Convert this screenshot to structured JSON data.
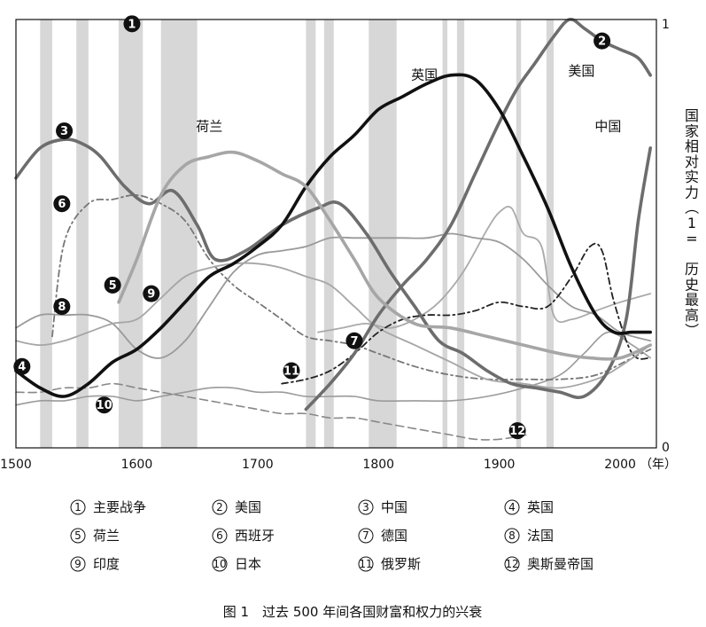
{
  "chart_data": {
    "type": "line",
    "title": "",
    "xlabel": "（年）",
    "ylabel": "国家相对实力（1= 历史最高）",
    "xlim": [
      1500,
      2030
    ],
    "ylim": [
      0,
      1
    ],
    "x_ticks": [
      "1500",
      "1600",
      "1700",
      "1800",
      "1900",
      "2000"
    ],
    "y_ticks": [
      "0",
      "1"
    ],
    "war_periods": [
      [
        1520,
        1530
      ],
      [
        1550,
        1560
      ],
      [
        1585,
        1605
      ],
      [
        1620,
        1650
      ],
      [
        1740,
        1748
      ],
      [
        1755,
        1763
      ],
      [
        1792,
        1815
      ],
      [
        1853,
        1857
      ],
      [
        1865,
        1871
      ],
      [
        1914,
        1918
      ],
      [
        1939,
        1945
      ]
    ],
    "series": [
      {
        "id": 1,
        "name": "主要战争",
        "markers": [
          {
            "x": 1596,
            "y": 0.99
          }
        ]
      },
      {
        "id": 2,
        "name": "美国",
        "color": "#6d6d6d",
        "width": 3.6,
        "dash": "",
        "label": "美国",
        "label_pos": [
          1968,
          0.87
        ],
        "markers": [
          {
            "x": 1985,
            "y": 0.95
          }
        ],
        "x": [
          1740,
          1760,
          1780,
          1800,
          1820,
          1840,
          1860,
          1880,
          1900,
          1915,
          1930,
          1945,
          1958,
          1970,
          1985,
          2000,
          2015,
          2025
        ],
        "y": [
          0.09,
          0.15,
          0.22,
          0.31,
          0.38,
          0.44,
          0.52,
          0.64,
          0.76,
          0.84,
          0.9,
          0.96,
          1.0,
          0.98,
          0.95,
          0.93,
          0.91,
          0.87
        ]
      },
      {
        "id": 3,
        "name": "中国",
        "color": "#6d6d6d",
        "width": 3.6,
        "dash": "",
        "label": "中国",
        "label_pos": [
          1990,
          0.74
        ],
        "markers": [
          {
            "x": 1540,
            "y": 0.74
          }
        ],
        "x": [
          1500,
          1520,
          1540,
          1555,
          1570,
          1590,
          1610,
          1630,
          1650,
          1665,
          1690,
          1720,
          1750,
          1768,
          1790,
          1810,
          1830,
          1850,
          1870,
          1890,
          1910,
          1930,
          1950,
          1970,
          1990,
          2005,
          2015,
          2025
        ],
        "y": [
          0.63,
          0.7,
          0.72,
          0.71,
          0.68,
          0.61,
          0.57,
          0.6,
          0.52,
          0.44,
          0.46,
          0.52,
          0.56,
          0.57,
          0.5,
          0.41,
          0.33,
          0.25,
          0.22,
          0.18,
          0.15,
          0.14,
          0.13,
          0.12,
          0.18,
          0.3,
          0.53,
          0.7
        ]
      },
      {
        "id": 4,
        "name": "英国",
        "color": "#111111",
        "width": 3.6,
        "dash": "",
        "label": "英国",
        "label_pos": [
          1838,
          0.86
        ],
        "markers": [
          {
            "x": 1505,
            "y": 0.19
          }
        ],
        "x": [
          1500,
          1520,
          1540,
          1560,
          1580,
          1600,
          1620,
          1640,
          1660,
          1680,
          1700,
          1720,
          1740,
          1760,
          1780,
          1800,
          1820,
          1840,
          1860,
          1880,
          1900,
          1920,
          1940,
          1960,
          1980,
          1995,
          2010,
          2025
        ],
        "y": [
          0.18,
          0.14,
          0.12,
          0.15,
          0.2,
          0.23,
          0.28,
          0.34,
          0.4,
          0.43,
          0.47,
          0.52,
          0.61,
          0.68,
          0.73,
          0.79,
          0.82,
          0.85,
          0.87,
          0.86,
          0.79,
          0.68,
          0.56,
          0.42,
          0.31,
          0.27,
          0.27,
          0.27
        ]
      },
      {
        "id": 5,
        "name": "荷兰",
        "color": "#a6a6a6",
        "width": 3.6,
        "dash": "",
        "label": "荷兰",
        "label_pos": [
          1660,
          0.74
        ],
        "markers": [
          {
            "x": 1580,
            "y": 0.38
          }
        ],
        "x": [
          1585,
          1600,
          1620,
          1640,
          1660,
          1680,
          1700,
          1720,
          1740,
          1760,
          1780,
          1800,
          1830,
          1860,
          1890,
          1920,
          1950,
          1975,
          2000,
          2025
        ],
        "y": [
          0.34,
          0.44,
          0.59,
          0.66,
          0.68,
          0.69,
          0.67,
          0.64,
          0.61,
          0.53,
          0.44,
          0.35,
          0.29,
          0.28,
          0.26,
          0.24,
          0.22,
          0.21,
          0.21,
          0.24
        ]
      },
      {
        "id": 6,
        "name": "西班牙",
        "color": "#777777",
        "width": 1.8,
        "dash": "7,4,2,4",
        "markers": [
          {
            "x": 1538,
            "y": 0.57
          }
        ],
        "x": [
          1530,
          1540,
          1560,
          1580,
          1600,
          1620,
          1640,
          1660,
          1680,
          1700,
          1720,
          1740,
          1760,
          1780,
          1800,
          1830,
          1860,
          1890,
          1920,
          1950,
          1980,
          2010,
          2025
        ],
        "y": [
          0.26,
          0.48,
          0.57,
          0.58,
          0.59,
          0.57,
          0.53,
          0.44,
          0.38,
          0.34,
          0.3,
          0.26,
          0.25,
          0.24,
          0.22,
          0.19,
          0.17,
          0.16,
          0.16,
          0.16,
          0.17,
          0.21,
          0.23
        ]
      },
      {
        "id": 7,
        "name": "德国",
        "color": "#aaaaaa",
        "width": 1.8,
        "dash": "",
        "markers": [
          {
            "x": 1780,
            "y": 0.25
          }
        ],
        "x": [
          1750,
          1770,
          1790,
          1810,
          1830,
          1850,
          1870,
          1890,
          1900,
          1910,
          1920,
          1935,
          1945,
          1960,
          1980,
          2000,
          2025
        ],
        "y": [
          0.27,
          0.28,
          0.29,
          0.28,
          0.3,
          0.34,
          0.41,
          0.51,
          0.55,
          0.56,
          0.5,
          0.47,
          0.31,
          0.3,
          0.32,
          0.34,
          0.36
        ]
      },
      {
        "id": 8,
        "name": "法国",
        "color": "#9a9a9a",
        "width": 1.8,
        "dash": "",
        "markers": [
          {
            "x": 1538,
            "y": 0.33
          }
        ],
        "x": [
          1500,
          1520,
          1540,
          1560,
          1580,
          1600,
          1620,
          1640,
          1660,
          1680,
          1700,
          1720,
          1740,
          1760,
          1780,
          1800,
          1820,
          1840,
          1860,
          1880,
          1900,
          1920,
          1940,
          1960,
          1980,
          2000,
          2025
        ],
        "y": [
          0.28,
          0.31,
          0.31,
          0.31,
          0.29,
          0.23,
          0.21,
          0.25,
          0.33,
          0.41,
          0.45,
          0.46,
          0.47,
          0.49,
          0.49,
          0.49,
          0.49,
          0.49,
          0.5,
          0.49,
          0.48,
          0.44,
          0.38,
          0.33,
          0.31,
          0.27,
          0.25
        ]
      },
      {
        "id": 9,
        "name": "印度",
        "color": "#a6a6a6",
        "width": 1.8,
        "dash": "",
        "markers": [
          {
            "x": 1612,
            "y": 0.36
          }
        ],
        "x": [
          1500,
          1520,
          1540,
          1560,
          1580,
          1600,
          1620,
          1640,
          1660,
          1680,
          1700,
          1720,
          1740,
          1760,
          1780,
          1800,
          1830,
          1860,
          1890,
          1920,
          1950,
          1980,
          2000,
          2025
        ],
        "y": [
          0.25,
          0.24,
          0.25,
          0.27,
          0.29,
          0.3,
          0.35,
          0.4,
          0.42,
          0.43,
          0.43,
          0.42,
          0.4,
          0.38,
          0.33,
          0.28,
          0.24,
          0.2,
          0.16,
          0.15,
          0.14,
          0.16,
          0.19,
          0.24
        ]
      },
      {
        "id": 10,
        "name": "日本",
        "color": "#9a9a9a",
        "width": 1.6,
        "dash": "",
        "markers": [
          {
            "x": 1573,
            "y": 0.1
          }
        ],
        "x": [
          1500,
          1520,
          1540,
          1560,
          1580,
          1600,
          1620,
          1640,
          1660,
          1680,
          1700,
          1720,
          1740,
          1760,
          1780,
          1800,
          1830,
          1860,
          1890,
          1920,
          1950,
          1970,
          1990,
          2010,
          2025
        ],
        "y": [
          0.1,
          0.11,
          0.11,
          0.12,
          0.12,
          0.11,
          0.12,
          0.13,
          0.14,
          0.14,
          0.13,
          0.13,
          0.12,
          0.12,
          0.12,
          0.11,
          0.11,
          0.11,
          0.12,
          0.14,
          0.17,
          0.22,
          0.27,
          0.24,
          0.21
        ]
      },
      {
        "id": 11,
        "name": "俄罗斯",
        "color": "#222222",
        "width": 1.8,
        "dash": "7,4,2,4",
        "markers": [
          {
            "x": 1728,
            "y": 0.18
          }
        ],
        "x": [
          1720,
          1740,
          1760,
          1780,
          1800,
          1820,
          1840,
          1860,
          1880,
          1900,
          1920,
          1940,
          1960,
          1975,
          1985,
          1995,
          2010,
          2025
        ],
        "y": [
          0.15,
          0.16,
          0.18,
          0.22,
          0.27,
          0.3,
          0.31,
          0.31,
          0.32,
          0.34,
          0.33,
          0.33,
          0.4,
          0.47,
          0.46,
          0.34,
          0.22,
          0.21
        ]
      },
      {
        "id": 12,
        "name": "奥斯曼帝国",
        "color": "#888888",
        "width": 1.6,
        "dash": "9,5",
        "markers": [
          {
            "x": 1915,
            "y": 0.04
          }
        ],
        "x": [
          1500,
          1520,
          1540,
          1560,
          1580,
          1600,
          1620,
          1640,
          1660,
          1680,
          1700,
          1720,
          1740,
          1760,
          1780,
          1800,
          1820,
          1840,
          1860,
          1880,
          1900,
          1922
        ],
        "y": [
          0.13,
          0.13,
          0.14,
          0.14,
          0.15,
          0.14,
          0.13,
          0.12,
          0.11,
          0.1,
          0.09,
          0.08,
          0.08,
          0.07,
          0.07,
          0.06,
          0.05,
          0.04,
          0.03,
          0.02,
          0.02,
          0.03
        ]
      }
    ],
    "legend": [
      {
        "num": "1",
        "label": "主要战争"
      },
      {
        "num": "2",
        "label": "美国"
      },
      {
        "num": "3",
        "label": "中国"
      },
      {
        "num": "4",
        "label": "英国"
      },
      {
        "num": "5",
        "label": "荷兰"
      },
      {
        "num": "6",
        "label": "西班牙"
      },
      {
        "num": "7",
        "label": "德国"
      },
      {
        "num": "8",
        "label": "法国"
      },
      {
        "num": "9",
        "label": "印度"
      },
      {
        "num": "10",
        "label": "日本"
      },
      {
        "num": "11",
        "label": "俄罗斯"
      },
      {
        "num": "12",
        "label": "奥斯曼帝国"
      }
    ]
  },
  "caption": "图 1　过去 500 年间各国财富和权力的兴衰"
}
